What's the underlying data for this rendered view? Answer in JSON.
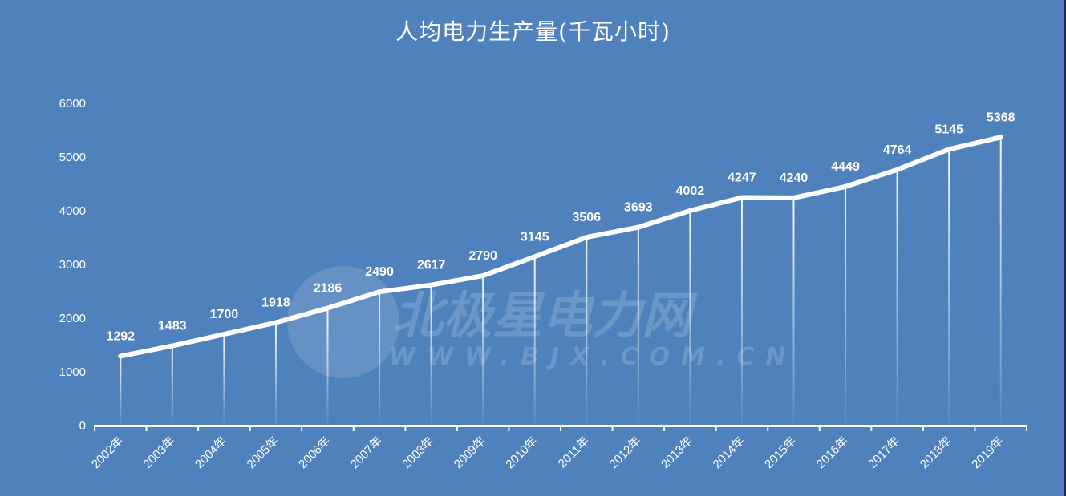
{
  "chart_data": {
    "type": "line",
    "title": "人均电力生产量(千瓦小时)",
    "xlabel": "",
    "ylabel": "",
    "categories": [
      "2002年",
      "2003年",
      "2004年",
      "2005年",
      "2006年",
      "2007年",
      "2008年",
      "2009年",
      "2010年",
      "2011年",
      "2012年",
      "2013年",
      "2014年",
      "2015年",
      "2016年",
      "2017年",
      "2018年",
      "2019年"
    ],
    "series": [
      {
        "name": "人均电力生产量",
        "values": [
          1292,
          1483,
          1700,
          1918,
          2186,
          2490,
          2617,
          2790,
          3145,
          3506,
          3693,
          4002,
          4247,
          4240,
          4449,
          4764,
          5145,
          5368
        ]
      }
    ],
    "yticks": [
      0,
      1000,
      2000,
      3000,
      4000,
      5000,
      6000
    ],
    "ylim": [
      0,
      6000
    ],
    "grid": false,
    "drop_lines": true,
    "data_labels": true,
    "legend": "none"
  },
  "watermark": {
    "cn": "北极星电力网",
    "en": "WWW.BJX.COM.CN"
  },
  "colors": {
    "background": "#4f81bd",
    "line": "#ffffff",
    "text": "#ffffff"
  }
}
